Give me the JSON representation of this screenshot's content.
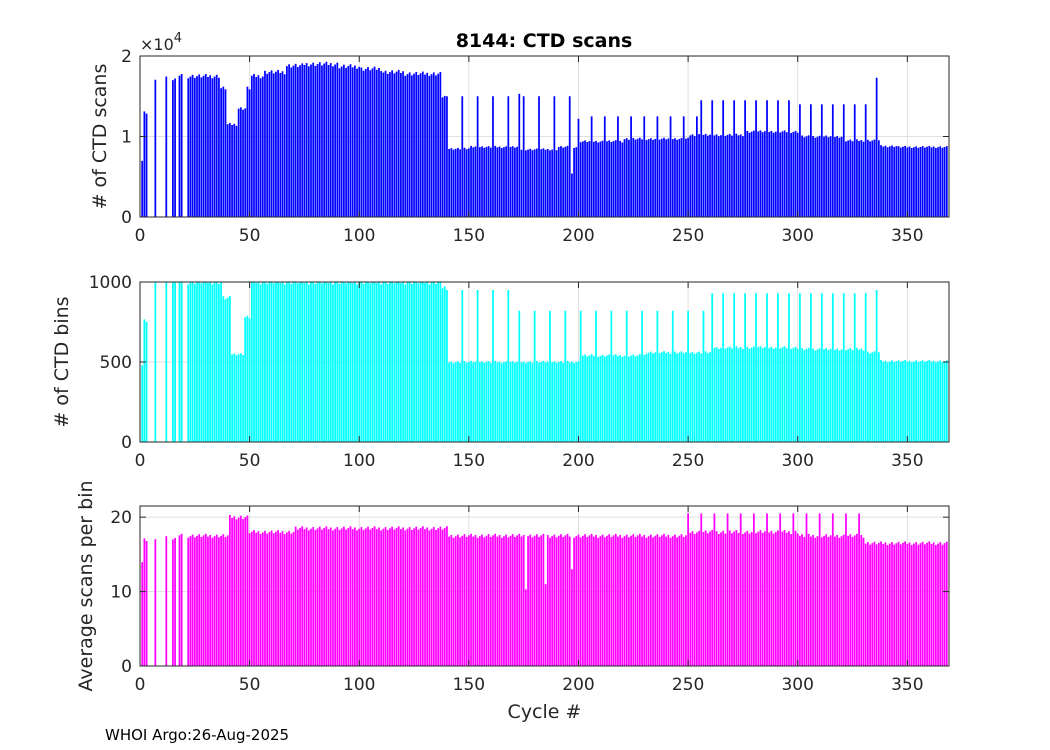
{
  "figure": {
    "title": "8144: CTD scans",
    "footer": "WHOI Argo:26-Aug-2025"
  },
  "chart_data": [
    {
      "type": "bar",
      "name": "scans",
      "color": "#0000ff",
      "ylabel": "# of CTD scans",
      "xlabel": "",
      "xlim": [
        0,
        369
      ],
      "ylim": [
        0,
        20000
      ],
      "xticks": [
        "0",
        "50",
        "100",
        "150",
        "200",
        "250",
        "300",
        "350"
      ],
      "yticks": [
        "0",
        "1",
        "2"
      ],
      "ytick_values": [
        0,
        10000,
        20000
      ],
      "exponent_label": "×10",
      "exponent_power": "4",
      "grid": true,
      "segments": [
        {
          "from": 1,
          "to": 1,
          "value": 7000
        },
        {
          "from": 2,
          "to": 3,
          "value": 13000
        },
        {
          "from": 7,
          "to": 7,
          "value": 17000
        },
        {
          "from": 12,
          "to": 12,
          "value": 17500
        },
        {
          "from": 15,
          "to": 16,
          "value": 17000
        },
        {
          "from": 18,
          "to": 19,
          "value": 17500
        },
        {
          "from": 22,
          "to": 36,
          "value": 17500
        },
        {
          "from": 37,
          "to": 39,
          "value": 16000
        },
        {
          "from": 40,
          "to": 44,
          "value": 11500
        },
        {
          "from": 45,
          "to": 48,
          "value": 13500
        },
        {
          "from": 49,
          "to": 50,
          "value": 16000
        },
        {
          "from": 51,
          "to": 56,
          "value": 17500
        },
        {
          "from": 57,
          "to": 66,
          "value": 18000
        },
        {
          "from": 67,
          "to": 74,
          "value": 18800
        },
        {
          "from": 75,
          "to": 90,
          "value": 19000
        },
        {
          "from": 91,
          "to": 100,
          "value": 18700
        },
        {
          "from": 101,
          "to": 110,
          "value": 18400
        },
        {
          "from": 111,
          "to": 120,
          "value": 18000
        },
        {
          "from": 121,
          "to": 137,
          "value": 17800
        },
        {
          "from": 138,
          "to": 139,
          "value": 15000
        },
        {
          "from": 140,
          "to": 150,
          "value": 8500
        },
        {
          "from": 151,
          "to": 172,
          "value": 8700
        },
        {
          "from": 173,
          "to": 190,
          "value": 8400
        },
        {
          "from": 191,
          "to": 200,
          "value": 8700
        },
        {
          "from": 201,
          "to": 220,
          "value": 9400
        },
        {
          "from": 221,
          "to": 250,
          "value": 9700
        },
        {
          "from": 251,
          "to": 275,
          "value": 10200
        },
        {
          "from": 276,
          "to": 300,
          "value": 10600
        },
        {
          "from": 301,
          "to": 320,
          "value": 10000
        },
        {
          "from": 321,
          "to": 337,
          "value": 9500
        },
        {
          "from": 338,
          "to": 345,
          "value": 8800
        },
        {
          "from": 346,
          "to": 368,
          "value": 8700
        }
      ],
      "spikes": [
        {
          "every": 7,
          "from": 140,
          "to": 200,
          "value": 15000
        },
        {
          "every": 6,
          "from": 200,
          "to": 255,
          "value": 12500
        },
        {
          "every": 5,
          "from": 256,
          "to": 300,
          "value": 14500
        },
        {
          "every": 5,
          "from": 301,
          "to": 335,
          "value": 14000
        }
      ],
      "points": [
        {
          "x": 173,
          "value": 15300
        },
        {
          "x": 197,
          "value": 5400
        },
        {
          "x": 200,
          "value": 12200
        },
        {
          "x": 336,
          "value": 17300
        }
      ]
    },
    {
      "type": "bar",
      "name": "bins",
      "color": "#00ffff",
      "ylabel": "# of CTD bins",
      "xlabel": "",
      "xlim": [
        0,
        369
      ],
      "ylim": [
        0,
        1000
      ],
      "xticks": [
        "0",
        "50",
        "100",
        "150",
        "200",
        "250",
        "300",
        "350"
      ],
      "yticks": [
        "0",
        "500",
        "1000"
      ],
      "ytick_values": [
        0,
        500,
        1000
      ],
      "grid": true,
      "segments": [
        {
          "from": 1,
          "to": 1,
          "value": 480
        },
        {
          "from": 2,
          "to": 3,
          "value": 760
        },
        {
          "from": 7,
          "to": 7,
          "value": 1000
        },
        {
          "from": 12,
          "to": 12,
          "value": 1000
        },
        {
          "from": 15,
          "to": 16,
          "value": 1000
        },
        {
          "from": 18,
          "to": 19,
          "value": 1000
        },
        {
          "from": 22,
          "to": 37,
          "value": 1000
        },
        {
          "from": 38,
          "to": 41,
          "value": 900
        },
        {
          "from": 42,
          "to": 47,
          "value": 550
        },
        {
          "from": 48,
          "to": 50,
          "value": 780
        },
        {
          "from": 51,
          "to": 137,
          "value": 1000
        },
        {
          "from": 138,
          "to": 139,
          "value": 970
        },
        {
          "from": 140,
          "to": 200,
          "value": 500
        },
        {
          "from": 201,
          "to": 230,
          "value": 540
        },
        {
          "from": 231,
          "to": 260,
          "value": 560
        },
        {
          "from": 261,
          "to": 300,
          "value": 590
        },
        {
          "from": 301,
          "to": 330,
          "value": 580
        },
        {
          "from": 331,
          "to": 337,
          "value": 560
        },
        {
          "from": 338,
          "to": 368,
          "value": 505
        }
      ],
      "spikes": [
        {
          "every": 7,
          "from": 140,
          "to": 172,
          "value": 950
        },
        {
          "every": 7,
          "from": 173,
          "to": 260,
          "value": 820
        },
        {
          "every": 5,
          "from": 261,
          "to": 335,
          "value": 930
        }
      ],
      "points": [
        {
          "x": 336,
          "value": 950
        }
      ]
    },
    {
      "type": "bar",
      "name": "average",
      "color": "#ff00ff",
      "ylabel": "Average scans per bin",
      "xlabel": "Cycle #",
      "xlim": [
        0,
        369
      ],
      "ylim": [
        0,
        21.5
      ],
      "xticks": [
        "0",
        "50",
        "100",
        "150",
        "200",
        "250",
        "300",
        "350"
      ],
      "yticks": [
        "0",
        "10",
        "20"
      ],
      "ytick_values": [
        0,
        10,
        20
      ],
      "grid": true,
      "segments": [
        {
          "from": 1,
          "to": 1,
          "value": 14
        },
        {
          "from": 2,
          "to": 3,
          "value": 17
        },
        {
          "from": 7,
          "to": 7,
          "value": 17
        },
        {
          "from": 12,
          "to": 12,
          "value": 17.5
        },
        {
          "from": 15,
          "to": 16,
          "value": 17
        },
        {
          "from": 18,
          "to": 19,
          "value": 17.5
        },
        {
          "from": 22,
          "to": 40,
          "value": 17.5
        },
        {
          "from": 41,
          "to": 49,
          "value": 20
        },
        {
          "from": 50,
          "to": 70,
          "value": 18
        },
        {
          "from": 71,
          "to": 140,
          "value": 18.5
        },
        {
          "from": 141,
          "to": 200,
          "value": 17.5
        },
        {
          "from": 201,
          "to": 250,
          "value": 17.5
        },
        {
          "from": 251,
          "to": 300,
          "value": 18
        },
        {
          "from": 301,
          "to": 330,
          "value": 17.5
        },
        {
          "from": 331,
          "to": 368,
          "value": 16.5
        }
      ],
      "spikes": [
        {
          "every": 6,
          "from": 250,
          "to": 330,
          "value": 20.5
        }
      ],
      "points": [
        {
          "x": 176,
          "value": 10.3
        },
        {
          "x": 185,
          "value": 11
        },
        {
          "x": 197,
          "value": 13
        }
      ]
    }
  ]
}
